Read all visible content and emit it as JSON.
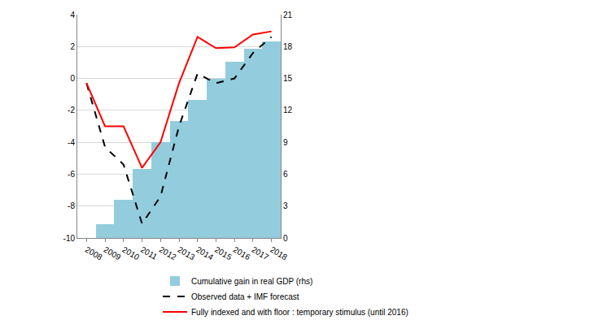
{
  "chart_data": {
    "type": "combo",
    "categories": [
      "2008",
      "2009",
      "2010",
      "2011",
      "2012",
      "2013",
      "2014",
      "2015",
      "2016",
      "2017",
      "2018"
    ],
    "series": [
      {
        "name": "Cumulative gain in real GDP (rhs)",
        "type": "bar",
        "axis": "y2",
        "color": "#93cddd",
        "values": [
          null,
          1.3,
          3.6,
          6.5,
          9.0,
          11.0,
          13.0,
          15.0,
          16.6,
          17.8,
          18.5
        ]
      },
      {
        "name": "Observed data + IMF forecast",
        "type": "line",
        "line_style": "dash",
        "color": "#000000",
        "values": [
          -0.3,
          -4.3,
          -5.4,
          -9.1,
          -7.4,
          -3.0,
          0.3,
          -0.3,
          0.0,
          1.6,
          2.6
        ]
      },
      {
        "name": "Fully indexed and with floor : temporary stimulus (until 2016)",
        "type": "line",
        "line_style": "solid",
        "color": "#ff0000",
        "values": [
          -0.3,
          -3.0,
          -3.0,
          -5.6,
          -4.0,
          -0.3,
          2.6,
          1.9,
          1.95,
          2.75,
          2.95
        ]
      }
    ],
    "ylim": [
      -10,
      4
    ],
    "yticks": [
      -10,
      -8,
      -6,
      -4,
      -2,
      0,
      2,
      4
    ],
    "y2lim": [
      0,
      21
    ],
    "y2ticks": [
      0,
      3,
      6,
      9,
      12,
      15,
      18,
      21
    ],
    "grid": true,
    "legend": "bottom"
  }
}
